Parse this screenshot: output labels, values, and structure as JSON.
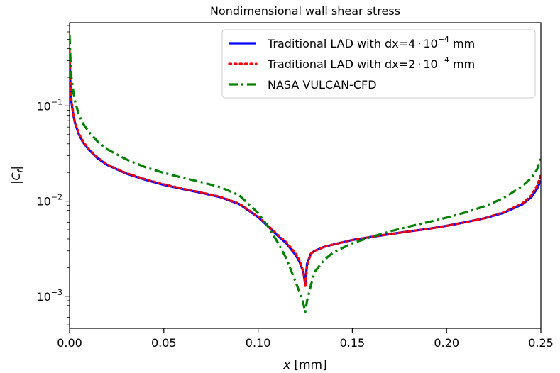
{
  "chart_data": {
    "type": "line",
    "title": "Nondimensional wall shear stress",
    "xlabel_var": "x",
    "xlabel_unit": "[mm]",
    "ylabel": "|C_f|",
    "xlim": [
      0.0,
      0.25
    ],
    "ylim": [
      0.00046,
      0.75
    ],
    "yscale": "log",
    "grid": false,
    "legend_position": "top-right",
    "x_ticks": [
      {
        "value": 0.0,
        "label": "0.00"
      },
      {
        "value": 0.05,
        "label": "0.05"
      },
      {
        "value": 0.1,
        "label": "0.10"
      },
      {
        "value": 0.15,
        "label": "0.15"
      },
      {
        "value": 0.2,
        "label": "0.20"
      },
      {
        "value": 0.25,
        "label": "0.25"
      }
    ],
    "y_ticks": [
      {
        "value": 0.001,
        "base": "10",
        "exp": "−3"
      },
      {
        "value": 0.01,
        "base": "10",
        "exp": "−2"
      },
      {
        "value": 0.1,
        "base": "10",
        "exp": "−1"
      }
    ],
    "series": [
      {
        "name": "Traditional LAD with dx=4·10⁻⁴ mm",
        "legend_prefix": "Traditional LAD with dx=4",
        "legend_exp": "−4",
        "legend_suffix": " mm",
        "color": "#0000ff",
        "style": "solid",
        "x": [
          0.0,
          0.0005,
          0.001,
          0.002,
          0.003,
          0.005,
          0.007,
          0.01,
          0.015,
          0.02,
          0.03,
          0.04,
          0.05,
          0.06,
          0.07,
          0.08,
          0.09,
          0.1,
          0.105,
          0.11,
          0.115,
          0.12,
          0.122,
          0.124,
          0.125,
          0.126,
          0.128,
          0.13,
          0.135,
          0.14,
          0.15,
          0.16,
          0.17,
          0.18,
          0.19,
          0.2,
          0.21,
          0.22,
          0.23,
          0.24,
          0.245,
          0.248,
          0.25
        ],
        "y": [
          0.35,
          0.15,
          0.11,
          0.08,
          0.065,
          0.05,
          0.042,
          0.035,
          0.028,
          0.024,
          0.0195,
          0.0168,
          0.0148,
          0.0134,
          0.0122,
          0.011,
          0.0093,
          0.0068,
          0.0055,
          0.0044,
          0.0036,
          0.0027,
          0.0023,
          0.0018,
          0.00135,
          0.0022,
          0.0028,
          0.003,
          0.0033,
          0.0035,
          0.0039,
          0.0042,
          0.0045,
          0.0048,
          0.0051,
          0.0055,
          0.006,
          0.0066,
          0.0075,
          0.0092,
          0.011,
          0.0135,
          0.0165
        ]
      },
      {
        "name": "Traditional LAD with dx=2·10⁻⁴ mm",
        "legend_prefix": "Traditional LAD with dx=2",
        "legend_exp": "−4",
        "legend_suffix": " mm",
        "color": "#ff0000",
        "style": "dotted",
        "x": [
          0.0,
          0.0005,
          0.001,
          0.002,
          0.003,
          0.005,
          0.007,
          0.01,
          0.015,
          0.02,
          0.03,
          0.04,
          0.05,
          0.06,
          0.07,
          0.08,
          0.09,
          0.1,
          0.105,
          0.11,
          0.115,
          0.12,
          0.122,
          0.124,
          0.1252,
          0.126,
          0.128,
          0.13,
          0.135,
          0.14,
          0.15,
          0.16,
          0.17,
          0.18,
          0.19,
          0.2,
          0.21,
          0.22,
          0.23,
          0.24,
          0.245,
          0.248,
          0.25
        ],
        "y": [
          0.38,
          0.16,
          0.115,
          0.082,
          0.066,
          0.051,
          0.043,
          0.0355,
          0.0285,
          0.0243,
          0.0197,
          0.017,
          0.015,
          0.0135,
          0.0123,
          0.0111,
          0.0094,
          0.0069,
          0.0056,
          0.0045,
          0.0037,
          0.0028,
          0.0024,
          0.0018,
          0.00125,
          0.0021,
          0.0028,
          0.003,
          0.0033,
          0.0035,
          0.0039,
          0.0042,
          0.0045,
          0.0048,
          0.0051,
          0.0055,
          0.006,
          0.0066,
          0.0076,
          0.0094,
          0.0115,
          0.0145,
          0.019
        ]
      },
      {
        "name": "NASA VULCAN-CFD",
        "legend_prefix": "NASA VULCAN-CFD",
        "legend_exp": "",
        "legend_suffix": "",
        "color": "#008000",
        "style": "dashdot",
        "x": [
          0.0,
          0.0005,
          0.001,
          0.002,
          0.003,
          0.005,
          0.007,
          0.01,
          0.015,
          0.02,
          0.03,
          0.04,
          0.05,
          0.06,
          0.07,
          0.08,
          0.09,
          0.1,
          0.105,
          0.11,
          0.115,
          0.12,
          0.122,
          0.124,
          0.125,
          0.126,
          0.128,
          0.13,
          0.135,
          0.14,
          0.15,
          0.16,
          0.17,
          0.18,
          0.19,
          0.2,
          0.21,
          0.22,
          0.23,
          0.24,
          0.245,
          0.248,
          0.25
        ],
        "y": [
          0.55,
          0.3,
          0.2,
          0.14,
          0.11,
          0.08,
          0.066,
          0.054,
          0.042,
          0.035,
          0.0275,
          0.0228,
          0.0198,
          0.0176,
          0.0158,
          0.014,
          0.0115,
          0.0075,
          0.0055,
          0.0038,
          0.0025,
          0.0014,
          0.0011,
          0.00085,
          0.00068,
          0.0009,
          0.0013,
          0.0018,
          0.0024,
          0.0029,
          0.0036,
          0.0042,
          0.0048,
          0.0054,
          0.006,
          0.0067,
          0.0076,
          0.0088,
          0.0107,
          0.0143,
          0.0175,
          0.0215,
          0.028
        ]
      }
    ]
  }
}
